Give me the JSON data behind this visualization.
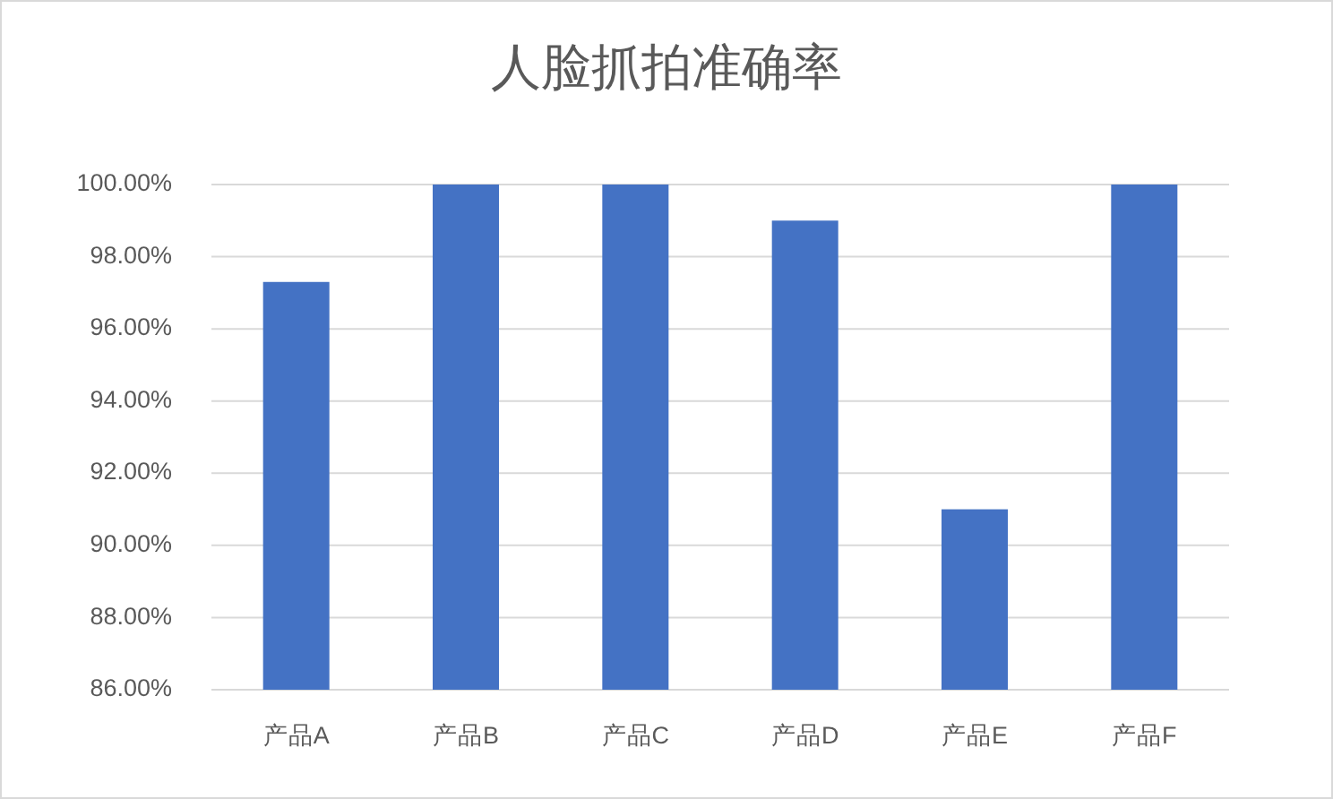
{
  "chart_data": {
    "type": "bar",
    "title": "人脸抓拍准确率",
    "categories": [
      "产品A",
      "产品B",
      "产品C",
      "产品D",
      "产品E",
      "产品F"
    ],
    "values": [
      97.3,
      100,
      100,
      99,
      91,
      100
    ],
    "color": "#4472c4",
    "ylim": [
      86,
      100
    ],
    "yticks": [
      {
        "value": 86,
        "label": "86.00%"
      },
      {
        "value": 88,
        "label": "88.00%"
      },
      {
        "value": 90,
        "label": "90.00%"
      },
      {
        "value": 92,
        "label": "92.00%"
      },
      {
        "value": 94,
        "label": "94.00%"
      },
      {
        "value": 96,
        "label": "96.00%"
      },
      {
        "value": 98,
        "label": "98.00%"
      },
      {
        "value": 100,
        "label": "100.00%"
      }
    ],
    "grid": "y"
  }
}
